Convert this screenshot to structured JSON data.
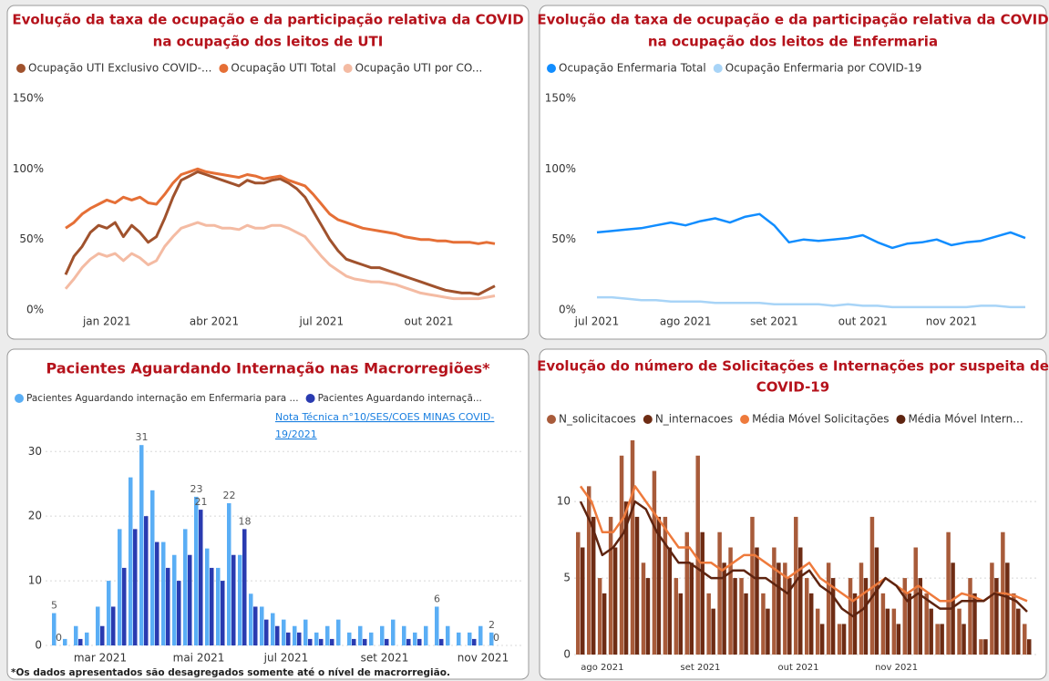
{
  "chart_data": [
    {
      "type": "line",
      "title": [
        "Evolução da taxa de ocupação e da participação relativa da COVID",
        "na ocupação dos leitos de UTI"
      ],
      "categories": [
        null,
        null,
        null,
        null,
        null,
        "jan 2021",
        null,
        null,
        null,
        null,
        null,
        null,
        null,
        null,
        null,
        null,
        null,
        null,
        "abr 2021",
        null,
        null,
        null,
        null,
        null,
        null,
        null,
        null,
        null,
        null,
        null,
        null,
        "jul 2021",
        null,
        null,
        null,
        null,
        null,
        null,
        null,
        null,
        null,
        null,
        null,
        null,
        "out 2021",
        null,
        null,
        null,
        null,
        null,
        null,
        null,
        null
      ],
      "series": [
        {
          "name": "Ocupação UTI Exclusivo COVID-...",
          "color": "#a0522d",
          "values": [
            25,
            38,
            45,
            55,
            60,
            58,
            62,
            52,
            60,
            55,
            48,
            52,
            65,
            80,
            92,
            95,
            98,
            96,
            94,
            92,
            90,
            88,
            92,
            90,
            90,
            92,
            93,
            90,
            86,
            80,
            70,
            60,
            50,
            42,
            36,
            34,
            32,
            30,
            30,
            28,
            26,
            24,
            22,
            20,
            18,
            16,
            14,
            13,
            12,
            12,
            11,
            14,
            17
          ]
        },
        {
          "name": "Ocupação UTI Total",
          "color": "#e56f36",
          "values": [
            58,
            62,
            68,
            72,
            75,
            78,
            76,
            80,
            78,
            80,
            76,
            75,
            82,
            90,
            96,
            98,
            100,
            98,
            97,
            96,
            95,
            94,
            96,
            95,
            93,
            94,
            95,
            92,
            90,
            88,
            82,
            75,
            68,
            64,
            62,
            60,
            58,
            57,
            56,
            55,
            54,
            52,
            51,
            50,
            50,
            49,
            49,
            48,
            48,
            48,
            47,
            48,
            47
          ]
        },
        {
          "name": "Ocupação UTI por CO...",
          "color": "#f4bba3",
          "values": [
            15,
            22,
            30,
            36,
            40,
            38,
            40,
            35,
            40,
            37,
            32,
            35,
            45,
            52,
            58,
            60,
            62,
            60,
            60,
            58,
            58,
            57,
            60,
            58,
            58,
            60,
            60,
            58,
            55,
            52,
            45,
            38,
            32,
            28,
            24,
            22,
            21,
            20,
            20,
            19,
            18,
            16,
            14,
            12,
            11,
            10,
            9,
            8,
            8,
            8,
            8,
            9,
            10
          ]
        }
      ],
      "ylim": [
        0,
        150
      ],
      "yticks": [
        {
          "value": 0,
          "label": "0%"
        },
        {
          "value": 50,
          "label": "50%"
        },
        {
          "value": 100,
          "label": "100%"
        },
        {
          "value": 150,
          "label": "150%"
        }
      ],
      "grid": false
    },
    {
      "type": "line",
      "title": [
        "Evolução da taxa de ocupação e da participação relativa da COVID",
        "na ocupação dos leitos de Enfermaria"
      ],
      "categories": [
        "jul 2021",
        null,
        null,
        null,
        null,
        null,
        "ago 2021",
        null,
        null,
        null,
        null,
        null,
        "set 2021",
        null,
        null,
        null,
        null,
        null,
        "out 2021",
        null,
        null,
        null,
        null,
        null,
        "nov 2021",
        null,
        null,
        null,
        null,
        null
      ],
      "series": [
        {
          "name": "Ocupação Enfermaria Total",
          "color": "#118dff",
          "values": [
            55,
            56,
            57,
            58,
            60,
            62,
            60,
            63,
            65,
            62,
            66,
            68,
            60,
            48,
            50,
            49,
            50,
            51,
            53,
            48,
            44,
            47,
            48,
            50,
            46,
            48,
            49,
            52,
            55,
            51
          ]
        },
        {
          "name": "Ocupação Enfermaria por COVID-19",
          "color": "#a8d4f7",
          "values": [
            9,
            9,
            8,
            7,
            7,
            6,
            6,
            6,
            5,
            5,
            5,
            5,
            4,
            4,
            4,
            4,
            3,
            4,
            3,
            3,
            2,
            2,
            2,
            2,
            2,
            2,
            3,
            3,
            2,
            2
          ]
        }
      ],
      "ylim": [
        0,
        150
      ],
      "yticks": [
        {
          "value": 0,
          "label": "0%"
        },
        {
          "value": 50,
          "label": "50%"
        },
        {
          "value": 100,
          "label": "100%"
        },
        {
          "value": 150,
          "label": "150%"
        }
      ],
      "grid": false
    },
    {
      "type": "bar",
      "title": [
        "Pacientes Aguardando Internação nas Macrorregiões*"
      ],
      "note": [
        "Nota Técnica n°10/SES/COES MINAS COVID-",
        "19/2021"
      ],
      "footnote": "*Os dados apresentados são desagregados somente até o nível de macrorregião.",
      "categories": [
        null,
        null,
        null,
        null,
        "mar 2021",
        null,
        null,
        null,
        null,
        null,
        null,
        null,
        null,
        "mai 2021",
        null,
        null,
        null,
        null,
        null,
        null,
        null,
        "jul 2021",
        null,
        null,
        null,
        null,
        null,
        null,
        null,
        null,
        "set 2021",
        null,
        null,
        null,
        null,
        null,
        null,
        null,
        null,
        "nov 2021",
        null
      ],
      "series": [
        {
          "name": "Pacientes Aguardando internação em Enfermaria para ...",
          "color": "#5aaef5",
          "values": [
            5,
            1,
            3,
            2,
            6,
            10,
            18,
            26,
            31,
            24,
            16,
            14,
            18,
            23,
            15,
            12,
            22,
            14,
            8,
            6,
            5,
            4,
            3,
            4,
            2,
            3,
            4,
            2,
            3,
            2,
            3,
            4,
            3,
            2,
            3,
            6,
            3,
            2,
            2,
            3,
            2
          ],
          "value_labels": [
            "5",
            null,
            null,
            null,
            null,
            null,
            null,
            null,
            "31",
            null,
            null,
            null,
            null,
            "23",
            null,
            null,
            "22",
            null,
            null,
            null,
            null,
            null,
            null,
            null,
            null,
            null,
            null,
            null,
            null,
            null,
            null,
            null,
            null,
            null,
            null,
            "6",
            null,
            null,
            null,
            null,
            "2"
          ]
        },
        {
          "name": "Pacientes Aguardando internaçã...",
          "color": "#2a3bb0",
          "values": [
            0,
            0,
            1,
            0,
            3,
            6,
            12,
            18,
            20,
            16,
            12,
            10,
            14,
            21,
            12,
            10,
            14,
            18,
            6,
            4,
            3,
            2,
            2,
            1,
            1,
            1,
            0,
            1,
            1,
            0,
            1,
            0,
            1,
            1,
            0,
            1,
            0,
            0,
            1,
            0,
            0
          ],
          "value_labels": [
            "0",
            null,
            null,
            null,
            null,
            null,
            null,
            null,
            null,
            null,
            null,
            null,
            null,
            "21",
            null,
            null,
            null,
            "18",
            null,
            null,
            null,
            null,
            null,
            null,
            null,
            null,
            null,
            null,
            null,
            null,
            null,
            null,
            null,
            null,
            null,
            null,
            null,
            null,
            null,
            null,
            "0"
          ]
        }
      ],
      "ylim": [
        0,
        33
      ],
      "yticks": [
        0,
        10,
        20,
        30
      ],
      "grid": true
    },
    {
      "type": "combo",
      "title": [
        "Evolução do número de Solicitações e Internações por suspeita de",
        "COVID-19"
      ],
      "categories": [
        null,
        null,
        "ago 2021",
        null,
        null,
        null,
        null,
        null,
        null,
        null,
        null,
        "set 2021",
        null,
        null,
        null,
        null,
        null,
        null,
        null,
        null,
        "out 2021",
        null,
        null,
        null,
        null,
        null,
        null,
        null,
        null,
        "nov 2021",
        null,
        null,
        null,
        null,
        null,
        null,
        null,
        null,
        null,
        null,
        null,
        null
      ],
      "series": [
        {
          "name": "N_solicitacoes",
          "kind": "bar",
          "color": "#a85b3a",
          "values": [
            8,
            11,
            5,
            9,
            13,
            14,
            6,
            12,
            9,
            5,
            8,
            13,
            4,
            8,
            7,
            5,
            9,
            4,
            7,
            6,
            9,
            5,
            3,
            6,
            2,
            5,
            6,
            9,
            4,
            3,
            5,
            7,
            4,
            2,
            8,
            3,
            5,
            1,
            6,
            8,
            4,
            2
          ]
        },
        {
          "name": "N_internacoes",
          "kind": "bar",
          "color": "#6e2c14",
          "values": [
            7,
            9,
            4,
            7,
            10,
            9,
            5,
            9,
            7,
            4,
            6,
            8,
            3,
            6,
            5,
            4,
            7,
            3,
            6,
            5,
            7,
            4,
            2,
            5,
            2,
            4,
            5,
            7,
            3,
            2,
            4,
            5,
            3,
            2,
            6,
            2,
            4,
            1,
            5,
            6,
            3,
            1
          ]
        },
        {
          "name": "Média Móvel Solicitações",
          "kind": "line",
          "color": "#ee7a3c",
          "values": [
            11,
            10,
            8,
            8,
            9,
            11,
            10,
            9,
            8,
            7,
            7,
            6,
            6,
            5.5,
            6,
            6.5,
            6.5,
            6,
            5.5,
            5,
            5.5,
            6,
            5,
            4.5,
            4,
            3.5,
            4,
            4.5,
            5,
            4.5,
            4,
            4.5,
            4,
            3.5,
            3.5,
            4,
            3.8,
            3.5,
            4,
            4,
            3.8,
            3.5
          ]
        },
        {
          "name": "Média Móvel Intern...",
          "kind": "line",
          "color": "#5e2410",
          "values": [
            10,
            8.5,
            6.5,
            7,
            8,
            10,
            9.5,
            8,
            7,
            6,
            6,
            5.5,
            5,
            5,
            5.5,
            5.5,
            5,
            5,
            4.5,
            4,
            5,
            5.5,
            4.5,
            4,
            3,
            2.5,
            3,
            4,
            5,
            4.5,
            3.5,
            4,
            3.5,
            3,
            3,
            3.5,
            3.5,
            3.5,
            4,
            3.8,
            3.5,
            2.8
          ]
        }
      ],
      "ylim": [
        0,
        14
      ],
      "yticks": [
        0,
        5,
        10
      ],
      "grid": true
    }
  ]
}
